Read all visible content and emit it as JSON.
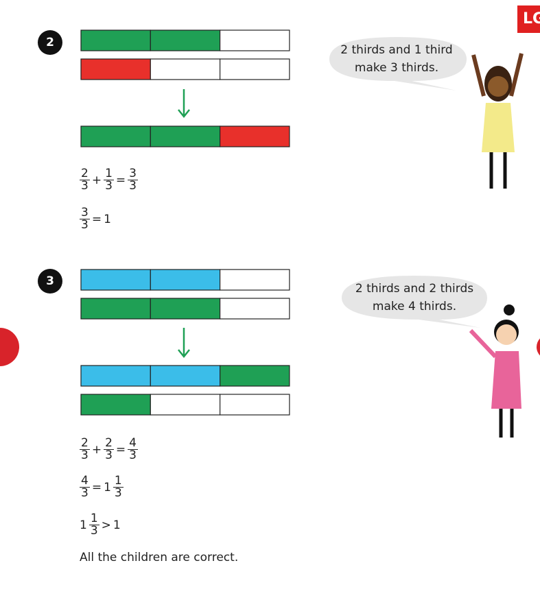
{
  "logo": "LG",
  "sections": [
    {
      "number": "2",
      "bubble": [
        "2 thirds and 1 third",
        "make 3 thirds."
      ],
      "equations": [
        [
          {
            "n": "2",
            "d": "3"
          },
          "+",
          {
            "n": "1",
            "d": "3"
          },
          "=",
          {
            "n": "3",
            "d": "3"
          }
        ],
        [
          {
            "n": "3",
            "d": "3"
          },
          "=",
          "1"
        ]
      ]
    },
    {
      "number": "3",
      "bubble": [
        "2 thirds and 2 thirds",
        "make 4 thirds."
      ],
      "equations": [
        [
          {
            "n": "2",
            "d": "3"
          },
          "+",
          {
            "n": "2",
            "d": "3"
          },
          "=",
          {
            "n": "4",
            "d": "3"
          }
        ],
        [
          {
            "n": "4",
            "d": "3"
          },
          "=",
          "1",
          {
            "n": "1",
            "d": "3"
          }
        ],
        [
          "1",
          {
            "n": "1",
            "d": "3"
          },
          ">",
          "1"
        ]
      ]
    }
  ],
  "conclusion": "All the children are correct."
}
